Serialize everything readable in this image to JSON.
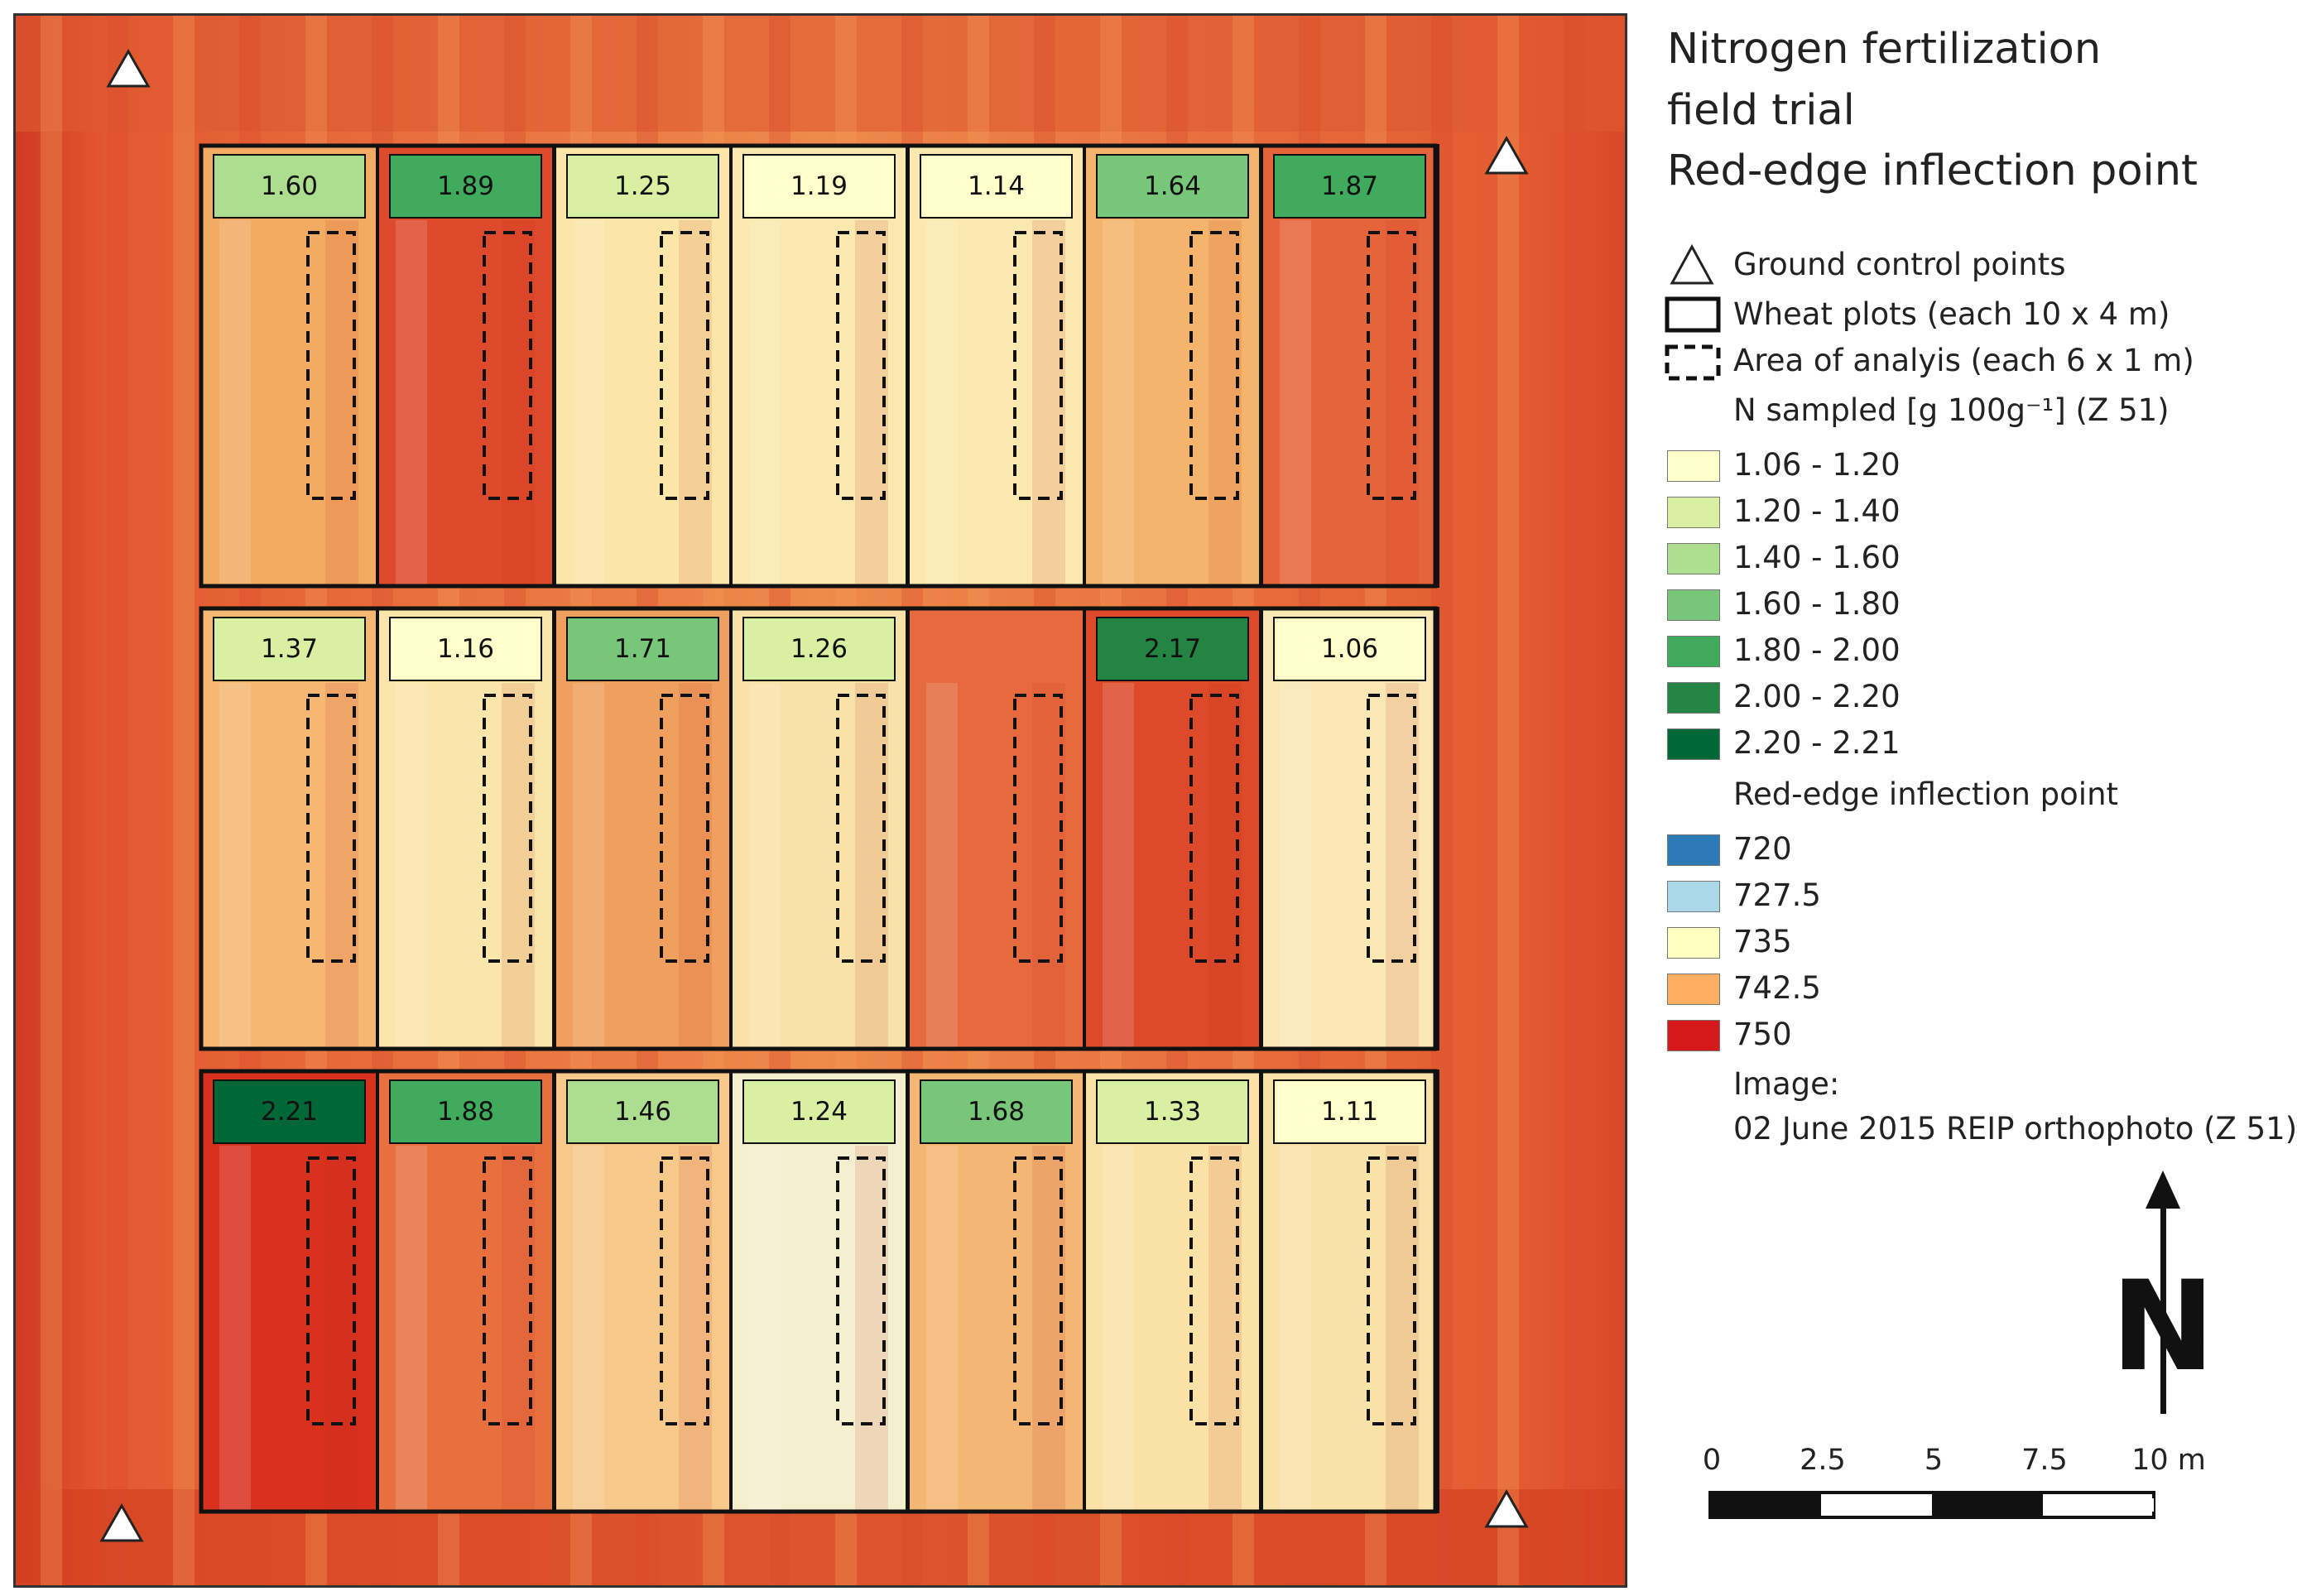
{
  "legend": {
    "title": [
      "Nitrogen fertilization",
      "field trial",
      "Red-edge inflection point"
    ],
    "symbols": {
      "gcp": "Ground control points",
      "plots": "Wheat plots (each 10 x 4 m)",
      "analysis": "Area of analyis (each 6 x 1 m)"
    },
    "n_title": "N sampled [g 100g⁻¹] (Z 51)",
    "n_classes": [
      {
        "label": "1.06 - 1.20",
        "color": "#ffffcc"
      },
      {
        "label": "1.20 - 1.40",
        "color": "#d9f0a3"
      },
      {
        "label": "1.40 - 1.60",
        "color": "#addd8e"
      },
      {
        "label": "1.60 - 1.80",
        "color": "#78c679"
      },
      {
        "label": "1.80 - 2.00",
        "color": "#41ab5d"
      },
      {
        "label": "2.00 - 2.20",
        "color": "#238443"
      },
      {
        "label": "2.20 - 2.21",
        "color": "#006837"
      }
    ],
    "reip_title": "Red-edge inflection point",
    "reip_classes": [
      {
        "label": "720",
        "color": "#2c7bb6"
      },
      {
        "label": "727.5",
        "color": "#abd9e9"
      },
      {
        "label": "735",
        "color": "#ffffbf"
      },
      {
        "label": "742.5",
        "color": "#fdae61"
      },
      {
        "label": "750",
        "color": "#d7191c"
      }
    ],
    "image_title": "Image:",
    "image_desc": "02 June 2015 REIP orthophoto (Z 51)"
  },
  "north_arrow": {
    "letter": "N"
  },
  "scale_bar": {
    "labels": [
      "0",
      "2.5",
      "5",
      "7.5",
      "10 m"
    ]
  },
  "plots": {
    "rows": [
      {
        "values": [
          "1.60",
          "1.89",
          "1.25",
          "1.19",
          "1.14",
          "1.64",
          "1.87"
        ],
        "colors": [
          "#addd8e",
          "#41ab5d",
          "#d9f0a3",
          "#ffffcc",
          "#ffffcc",
          "#78c679",
          "#41ab5d"
        ]
      },
      {
        "values": [
          "1.37",
          "1.16",
          "1.71",
          "1.26",
          "",
          "2.17",
          "1.06"
        ],
        "colors": [
          "#d9f0a3",
          "#ffffcc",
          "#78c679",
          "#d9f0a3",
          "",
          "#238443",
          "#ffffcc"
        ]
      },
      {
        "values": [
          "2.21",
          "1.88",
          "1.46",
          "1.24",
          "1.68",
          "1.33",
          "1.11"
        ],
        "colors": [
          "#006837",
          "#41ab5d",
          "#addd8e",
          "#d9f0a3",
          "#78c679",
          "#d9f0a3",
          "#ffffcc"
        ]
      }
    ],
    "reip_tone": [
      [
        "#f3aa62",
        "#de4a2c",
        "#fbe6a8",
        "#fae8ae",
        "#fae8ae",
        "#f4b46c",
        "#e6643a"
      ],
      [
        "#f5b772",
        "#fae6aa",
        "#f0a05e",
        "#f8e2a8",
        "#e66a3e",
        "#dc4a2a",
        "#f9e8b4"
      ],
      [
        "#d8321f",
        "#e8703f",
        "#f6c88a",
        "#f3efcf",
        "#f3b673",
        "#fae2a6",
        "#f8e2a8"
      ]
    ]
  }
}
